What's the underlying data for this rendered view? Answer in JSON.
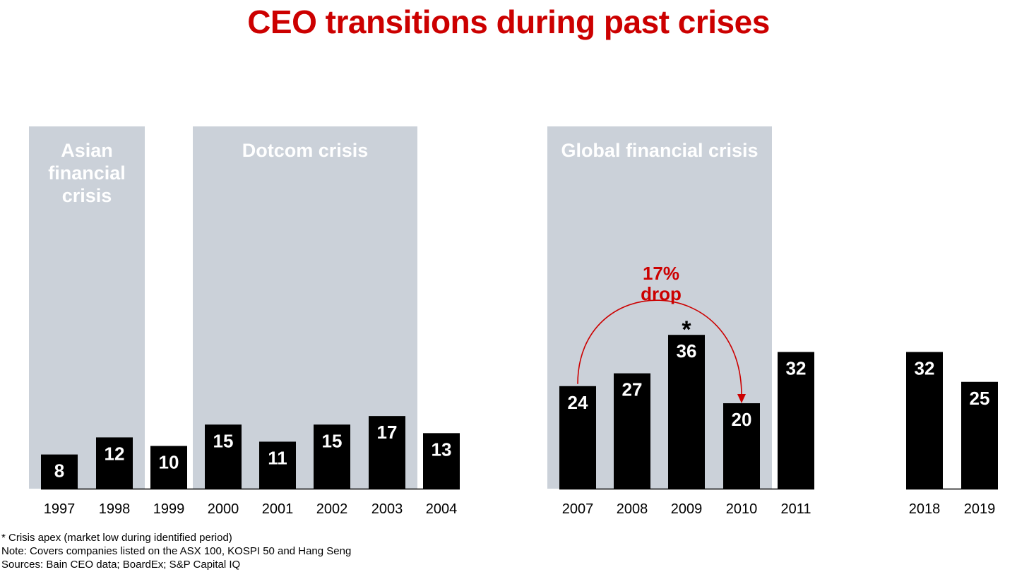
{
  "title": "CEO transitions during past crises",
  "chart_data": {
    "type": "bar",
    "categories": [
      "1997",
      "1998",
      "1999",
      "2000",
      "2001",
      "2002",
      "2003",
      "2004",
      "2007",
      "2008",
      "2009",
      "2010",
      "2011",
      "2018",
      "2019"
    ],
    "values": [
      8,
      12,
      10,
      15,
      11,
      15,
      17,
      13,
      24,
      27,
      36,
      20,
      32,
      32,
      25
    ],
    "value_labels": [
      "8",
      "12",
      "10",
      "15",
      "11",
      "15",
      "17",
      "13",
      "24",
      "27",
      "36",
      "20",
      "32",
      "32",
      "25"
    ],
    "crisis_periods": [
      {
        "label": "Asian financial crisis",
        "label_lines": [
          "Asian",
          "financial",
          "crisis"
        ],
        "from": "1997",
        "to": "1998"
      },
      {
        "label": "Dotcom crisis",
        "label_lines": [
          "Dotcom crisis"
        ],
        "from": "2000",
        "to": "2003"
      },
      {
        "label": "Global financial crisis",
        "label_lines": [
          "Global financial crisis"
        ],
        "from": "2007",
        "to": "2010"
      }
    ],
    "apex_marker": {
      "category": "2009",
      "symbol": "*"
    },
    "annotation": {
      "from": "2007",
      "to": "2010",
      "lines": [
        "17%",
        "drop"
      ]
    },
    "colors": {
      "bar": "#000000",
      "bar_label": "#ffffff",
      "band": "#cbd1d9",
      "band_label": "#ffffff",
      "accent": "#cc0000",
      "axis": "#000000"
    }
  },
  "notes": [
    "* Crisis apex (market low during identified period)",
    "Note: Covers companies listed on the ASX 100, KOSPI 50 and Hang Seng",
    "Sources: Bain CEO data; BoardEx; S&P Capital IQ"
  ]
}
